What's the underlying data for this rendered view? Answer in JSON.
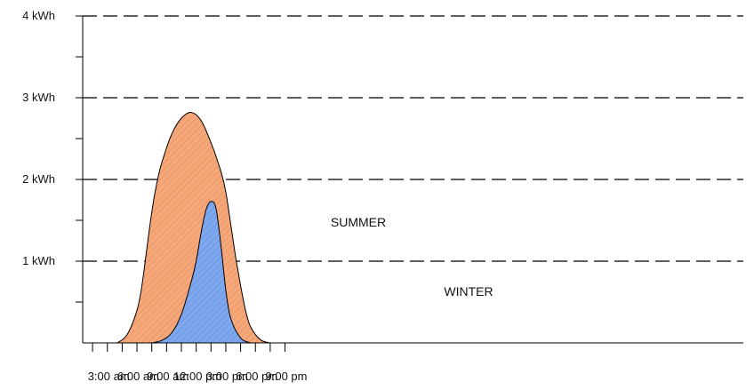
{
  "chart_data": {
    "type": "area",
    "title": "",
    "xlabel": "",
    "ylabel": "",
    "x_ticks": [
      "3:00 am",
      "6:00 am",
      "9:00 am",
      "12:00 pm",
      "3:00 pm",
      "6:00 pm",
      "9:00 pm"
    ],
    "x_tick_hours": [
      3,
      6,
      9,
      12,
      15,
      18,
      21
    ],
    "y_ticks": [
      "1 kWh",
      "2 kWh",
      "3 kWh",
      "4 kWh"
    ],
    "y_tick_values": [
      1,
      2,
      3,
      4
    ],
    "xlim": [
      1.0,
      21.0
    ],
    "ylim": [
      0,
      4
    ],
    "grid": "horizontal dashed lines at each labeled kWh tick",
    "series": [
      {
        "name": "SUMMER",
        "color": "#f5a87a",
        "x": [
          4.5,
          5.5,
          6.5,
          7.0,
          7.5,
          8.0,
          8.5,
          9.0,
          10.0,
          11.0,
          12.0,
          13.0,
          14.0,
          15.0,
          15.5,
          16.0,
          16.5,
          17.0,
          17.5,
          18.0,
          19.0,
          20.0
        ],
        "values": [
          0.0,
          0.1,
          0.4,
          0.7,
          1.15,
          1.6,
          1.95,
          2.2,
          2.55,
          2.75,
          2.82,
          2.72,
          2.45,
          2.1,
          1.85,
          1.45,
          1.05,
          0.7,
          0.4,
          0.2,
          0.04,
          0.0
        ]
      },
      {
        "name": "WINTER",
        "color": "#7fa8ee",
        "x": [
          8.0,
          9.0,
          10.0,
          11.0,
          12.0,
          12.5,
          13.0,
          13.5,
          14.0,
          14.5,
          15.0,
          15.5,
          16.0,
          17.0,
          18.0
        ],
        "values": [
          0.0,
          0.03,
          0.12,
          0.35,
          0.75,
          1.0,
          1.35,
          1.63,
          1.73,
          1.65,
          1.2,
          0.65,
          0.3,
          0.06,
          0.0
        ]
      }
    ]
  }
}
